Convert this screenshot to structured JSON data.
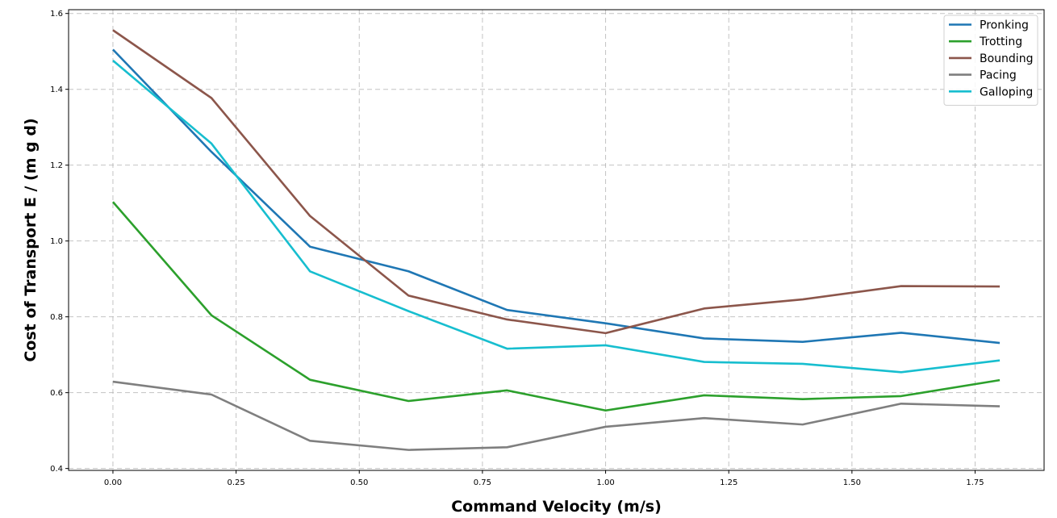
{
  "chart_data": {
    "type": "line",
    "title": "",
    "xlabel": "Command Velocity (m/s)",
    "ylabel": "Cost of Transport E / (m g d)",
    "xlim": [
      -0.09,
      1.89
    ],
    "ylim": [
      0.395,
      1.61
    ],
    "x_ticks": [
      "0.00",
      "0.25",
      "0.50",
      "0.75",
      "1.00",
      "1.25",
      "1.50",
      "1.75"
    ],
    "y_ticks": [
      "0.4",
      "0.6",
      "0.8",
      "1.0",
      "1.2",
      "1.4",
      "1.6"
    ],
    "x_tick_values": [
      0,
      0.25,
      0.5,
      0.75,
      1.0,
      1.25,
      1.5,
      1.75
    ],
    "y_tick_values": [
      0.4,
      0.6,
      0.8,
      1.0,
      1.2,
      1.4,
      1.6
    ],
    "grid": true,
    "legend_position": "top-right",
    "x": [
      0.0,
      0.2,
      0.4,
      0.6,
      0.8,
      1.0,
      1.2,
      1.4,
      1.6,
      1.8
    ],
    "series": [
      {
        "name": "Pronking",
        "color": "#1f77b4",
        "values": [
          1.505,
          1.235,
          0.985,
          0.92,
          0.818,
          0.783,
          0.743,
          0.734,
          0.758,
          0.731
        ]
      },
      {
        "name": "Trotting",
        "color": "#2ca02c",
        "values": [
          1.103,
          0.804,
          0.634,
          0.578,
          0.606,
          0.553,
          0.593,
          0.583,
          0.591,
          0.633
        ]
      },
      {
        "name": "Bounding",
        "color": "#8c564b",
        "values": [
          1.556,
          1.377,
          1.066,
          0.856,
          0.793,
          0.757,
          0.822,
          0.846,
          0.881,
          0.88
        ]
      },
      {
        "name": "Pacing",
        "color": "#7f7f7f",
        "values": [
          0.629,
          0.595,
          0.473,
          0.449,
          0.456,
          0.51,
          0.533,
          0.516,
          0.571,
          0.564
        ]
      },
      {
        "name": "Galloping",
        "color": "#17becf",
        "values": [
          1.476,
          1.257,
          0.92,
          0.815,
          0.716,
          0.725,
          0.681,
          0.676,
          0.654,
          0.685
        ]
      }
    ]
  }
}
